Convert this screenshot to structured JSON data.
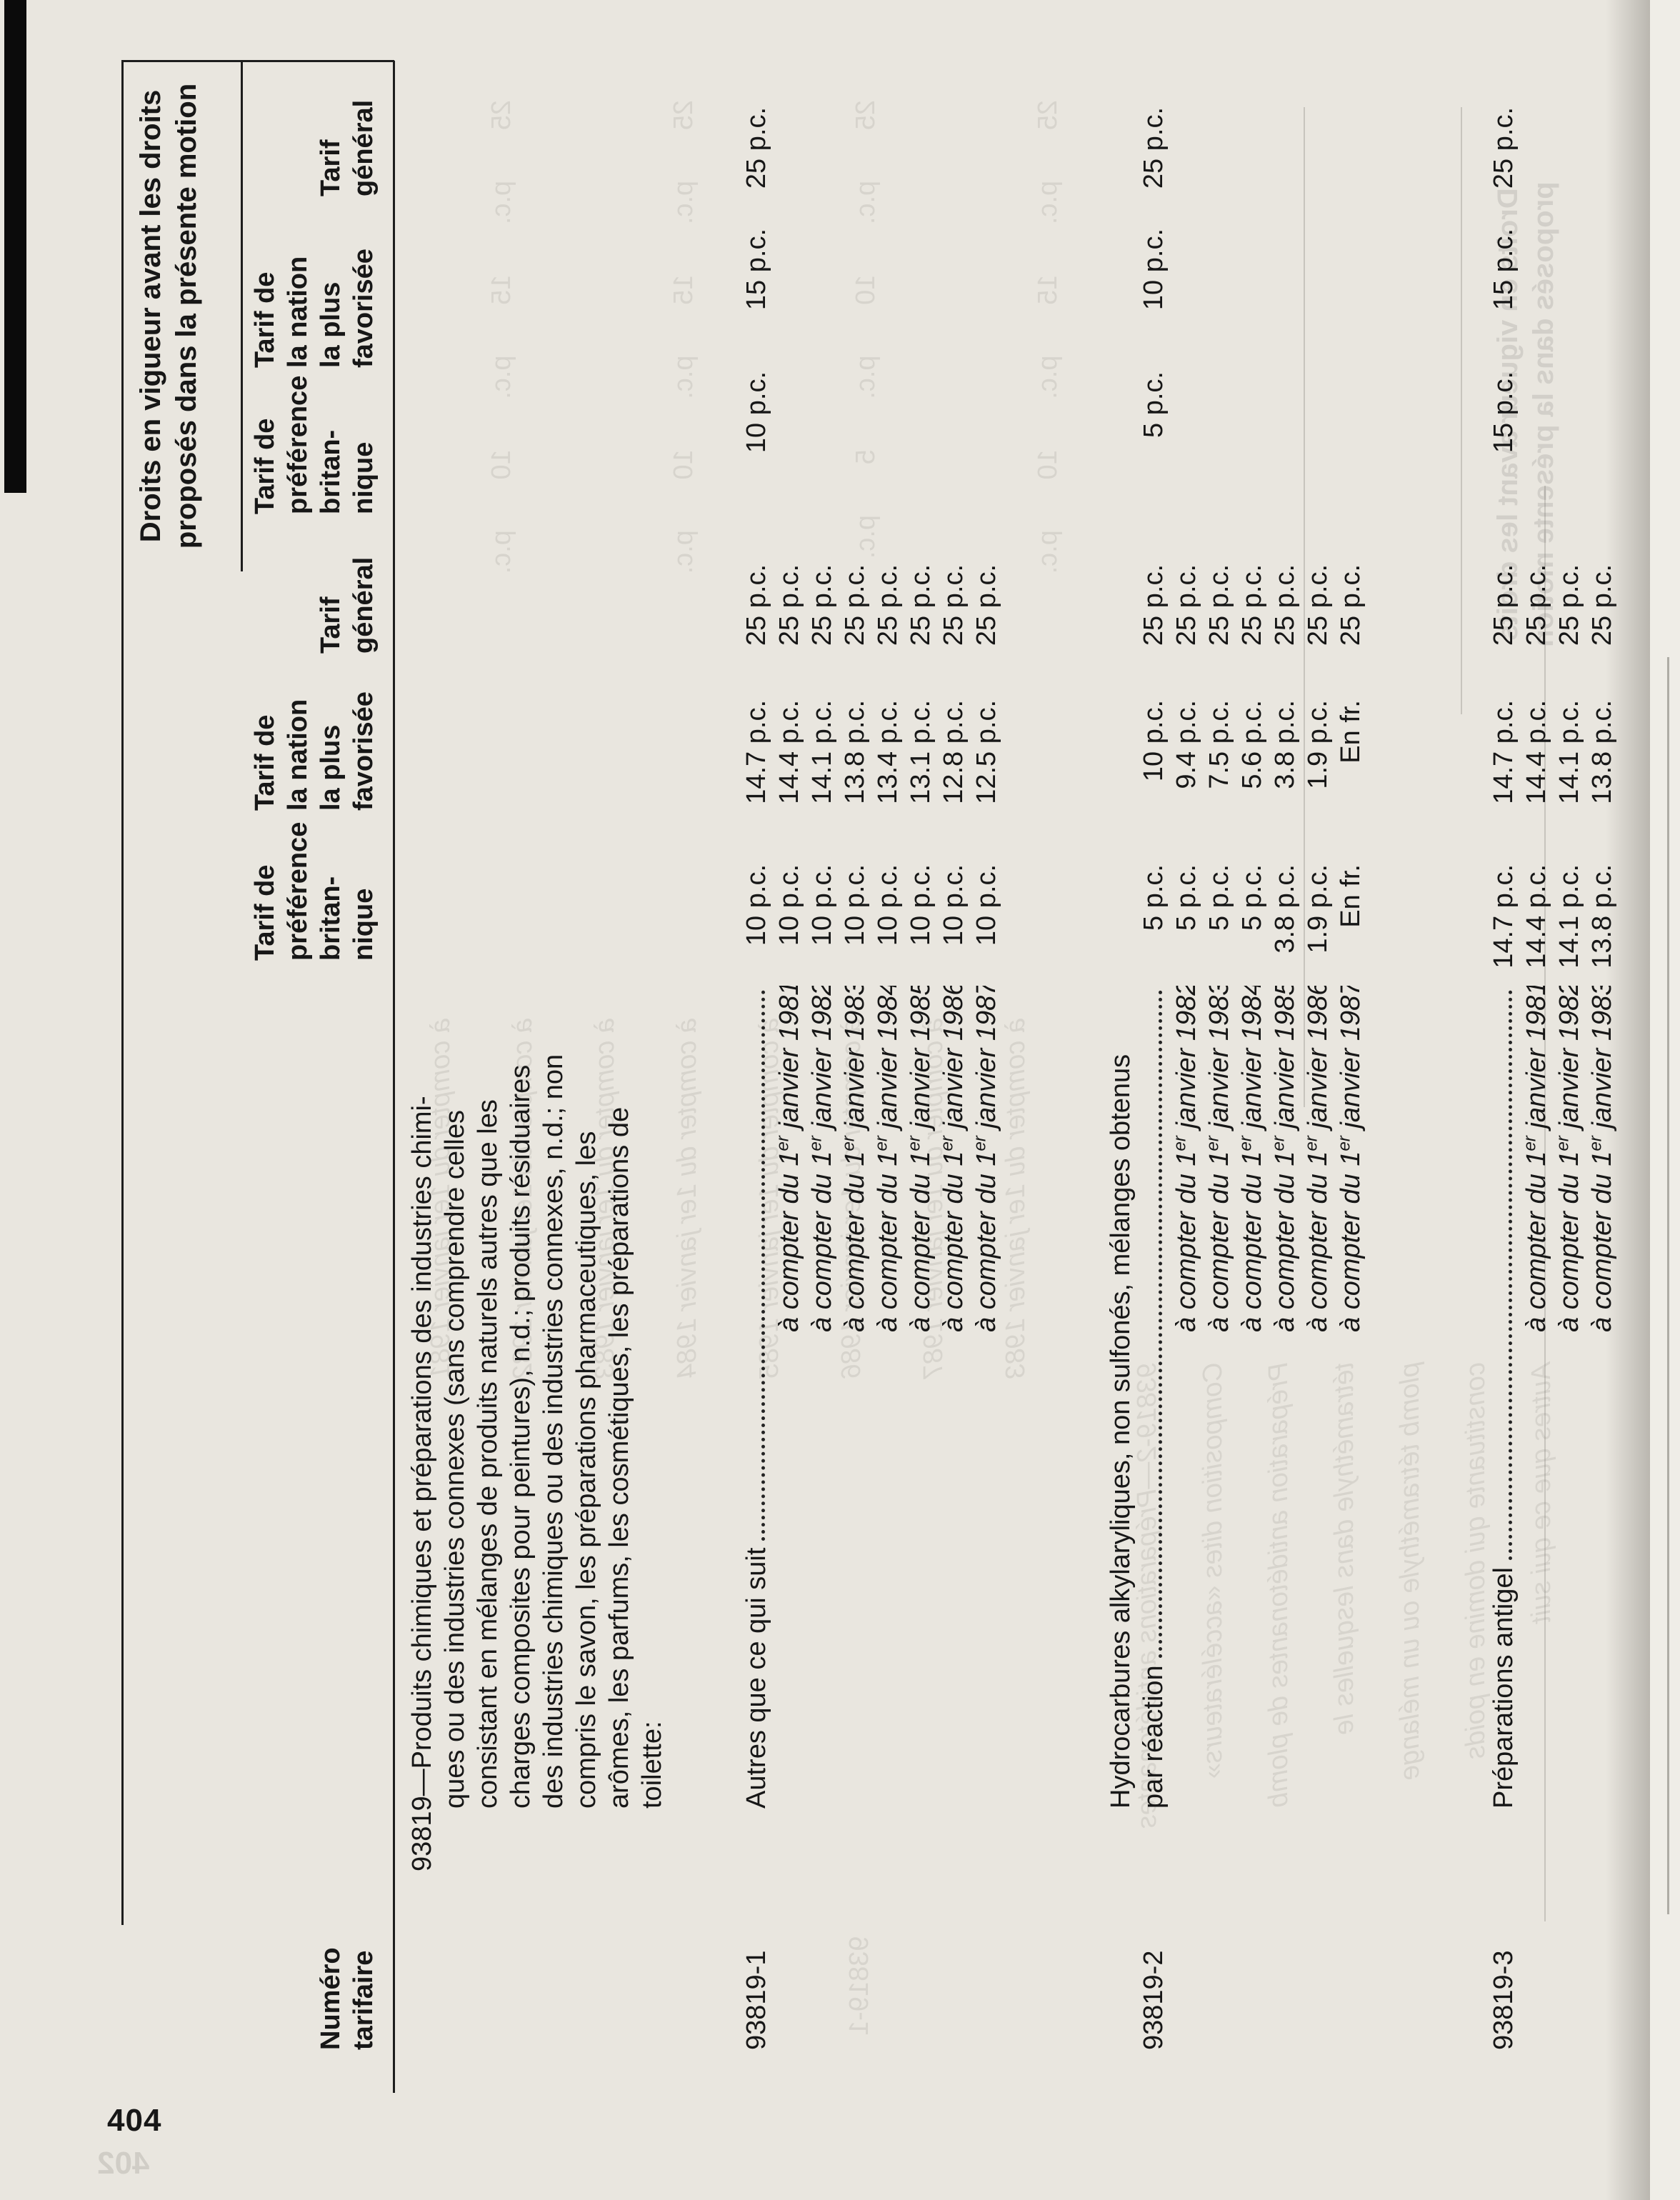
{
  "page_number": "404",
  "colors": {
    "paper": "#e9e6df",
    "ink": "#171717",
    "scan_bar": "#0b0b0b"
  },
  "header": {
    "rights_title_line1": "Droits en vigueur avant les droits",
    "rights_title_line2": "proposés dans la présente motion",
    "numero": {
      "l1": "Numéro",
      "l2": "tarifaire"
    },
    "brit": {
      "l1": "Tarif de",
      "l2": "préférence",
      "l3": "britan-",
      "l4": "nique"
    },
    "mfn": {
      "l1": "Tarif de",
      "l2": "la nation",
      "l3": "la plus",
      "l4": "favorisée"
    },
    "gen": {
      "l1": "Tarif",
      "l2": "général"
    }
  },
  "item_93819": {
    "description_lines": [
      "93819—Produits chimiques et préparations des industries chimi-",
      "ques ou des industries connexes (sans comprendre celles",
      "consistant en mélanges de produits naturels autres que les",
      "charges composites pour peintures), n.d.; produits résiduaires",
      "des industries chimiques ou des industries connexes, n.d.; non",
      "compris le savon, les préparations pharmaceutiques, les",
      "arômes, les parfums, les cosmétiques, les préparations de",
      "toilette:"
    ]
  },
  "blocks": [
    {
      "number": "93819-1",
      "heading": "Autres que ce qui suit",
      "base": {
        "brit": "10 p.c.",
        "mfn": "14.7 p.c.",
        "gen": "25 p.c.",
        "ex_brit": "10 p.c.",
        "ex_mfn": "15 p.c.",
        "ex_gen": "25 p.c."
      },
      "rows": [
        {
          "d1": "à compter du 1",
          "sup": "er",
          "d2": " janvier 1981",
          "brit": "10 p.c.",
          "mfn": "14.4 p.c.",
          "gen": "25 p.c."
        },
        {
          "d1": "à compter du 1",
          "sup": "er",
          "d2": " janvier 1982",
          "brit": "10 p.c.",
          "mfn": "14.1 p.c.",
          "gen": "25 p.c."
        },
        {
          "d1": "à compter du 1",
          "sup": "er",
          "d2": " janvier 1983",
          "brit": "10 p.c.",
          "mfn": "13.8 p.c.",
          "gen": "25 p.c."
        },
        {
          "d1": "à compter du 1",
          "sup": "er",
          "d2": " janvier 1984",
          "brit": "10 p.c.",
          "mfn": "13.4 p.c.",
          "gen": "25 p.c."
        },
        {
          "d1": "à compter du 1",
          "sup": "er",
          "d2": " janvier 1985",
          "brit": "10 p.c.",
          "mfn": "13.1 p.c.",
          "gen": "25 p.c."
        },
        {
          "d1": "à compter du 1",
          "sup": "er",
          "d2": " janvier 1986",
          "brit": "10 p.c.",
          "mfn": "12.8 p.c.",
          "gen": "25 p.c."
        },
        {
          "d1": "à compter du 1",
          "sup": "er",
          "d2": " janvier 1987",
          "brit": "10 p.c.",
          "mfn": "12.5 p.c.",
          "gen": "25 p.c."
        }
      ]
    },
    {
      "number": "93819-2",
      "heading_line1": "Hydrocarbures alkylaryliques, non sulfonés, mélanges obtenus",
      "heading_line2": "par réaction",
      "base": {
        "brit": "5 p.c.",
        "mfn": "10 p.c.",
        "gen": "25 p.c.",
        "ex_brit": "5 p.c.",
        "ex_mfn": "10 p.c.",
        "ex_gen": "25 p.c."
      },
      "rows": [
        {
          "d1": "à compter du 1",
          "sup": "er",
          "d2": " janvier 1982",
          "brit": "5 p.c.",
          "mfn": "9.4 p.c.",
          "gen": "25 p.c."
        },
        {
          "d1": "à compter du 1",
          "sup": "er",
          "d2": " janvier 1983",
          "brit": "5 p.c.",
          "mfn": "7.5 p.c.",
          "gen": "25 p.c."
        },
        {
          "d1": "à compter du 1",
          "sup": "er",
          "d2": " janvier 1984",
          "brit": "5 p.c.",
          "mfn": "5.6 p.c.",
          "gen": "25 p.c."
        },
        {
          "d1": "à compter du 1",
          "sup": "er",
          "d2": " janvier 1985",
          "brit": "3.8 p.c.",
          "mfn": "3.8 p.c.",
          "gen": "25 p.c."
        },
        {
          "d1": "à compter du 1",
          "sup": "er",
          "d2": " janvier 1986",
          "brit": "1.9 p.c.",
          "mfn": "1.9 p.c.",
          "gen": "25 p.c."
        },
        {
          "d1": "à compter du 1",
          "sup": "er",
          "d2": " janvier 1987",
          "brit": "En fr.",
          "mfn": "En fr.",
          "gen": "25 p.c."
        }
      ]
    },
    {
      "number": "93819-3",
      "heading": "Préparations antigel",
      "base": {
        "brit": "14.7 p.c.",
        "mfn": "14.7 p.c.",
        "gen": "25 p.c.",
        "ex_brit": "15 p.c.",
        "ex_mfn": "15 p.c.",
        "ex_gen": "25 p.c."
      },
      "rows": [
        {
          "d1": "à compter du 1",
          "sup": "er",
          "d2": " janvier 1981",
          "brit": "14.4 p.c.",
          "mfn": "14.4 p.c.",
          "gen": "25 p.c."
        },
        {
          "d1": "à compter du 1",
          "sup": "er",
          "d2": " janvier 1982",
          "brit": "14.1 p.c.",
          "mfn": "14.1 p.c.",
          "gen": "25 p.c."
        },
        {
          "d1": "à compter du 1",
          "sup": "er",
          "d2": " janvier 1983",
          "brit": "13.8 p.c.",
          "mfn": "13.8 p.c.",
          "gen": "25 p.c."
        }
      ]
    }
  ],
  "bleed_through": {
    "page_number_ghost": "402",
    "values_lines": [
      "25 p.c. 15 p.c. 10 p.c.",
      "25 p.c. 15 p.c. 10 p.c.",
      "25 p.c. 10 p.c. 5 p.c.",
      "25 p.c. 15 p.c. 10 p.c."
    ],
    "dates_lines": [
      "à compter du 1er janvier 1981",
      "à compter du 1er janvier 1982",
      "à compter du 1er janvier 1983",
      "à compter du 1er janvier 1984",
      "à compter du 1er janvier 1985",
      "à compter du 1er janvier 1986",
      "à compter du 1er janvier 1987",
      "à compter du 1er janvier 1983"
    ],
    "head_line1": "Droits en vigueur avant les droits",
    "head_line2": "proposés dans la présente motion",
    "body_lines": [
      "93819-2—Préparations antidétonantes",
      "Composition dites «accélérateurs»",
      "Préparation antidétonantes de plomb",
      "tétraméthyle dans lesquelles le",
      "plomb tétraméthyle ou un mélange",
      "constituante qui domine en poids",
      "Autres que ce qui suit"
    ],
    "label": "93819-1"
  }
}
